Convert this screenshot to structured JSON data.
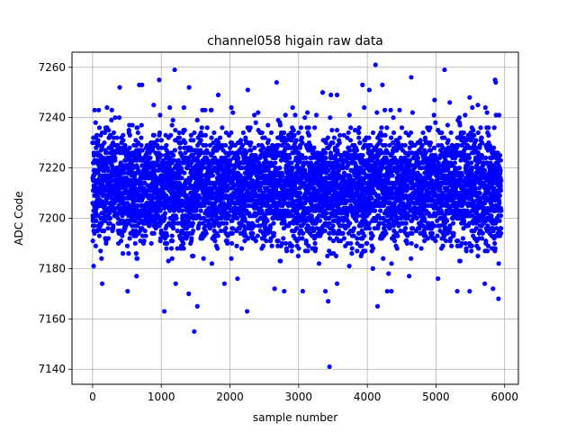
{
  "chart_data": {
    "type": "scatter",
    "title": "channel058 higain raw data",
    "xlabel": "sample number",
    "ylabel": "ADC Code",
    "xlim": [
      -300,
      6200
    ],
    "ylim": [
      7134,
      7266
    ],
    "xticks": [
      0,
      1000,
      2000,
      3000,
      4000,
      5000,
      6000
    ],
    "yticks": [
      7140,
      7160,
      7180,
      7200,
      7220,
      7240,
      7260
    ],
    "grid": true,
    "marker_color": "#0000ff",
    "marker": "circle",
    "n_samples": 5950,
    "typical_band": [
      7180,
      7245
    ],
    "center_value": 7212,
    "series": [
      {
        "points": [
          [
            1045,
            7163
          ],
          [
            1480,
            7155
          ],
          [
            1525,
            7165
          ],
          [
            2250,
            7163
          ],
          [
            3450,
            7141
          ],
          [
            3430,
            7167
          ],
          [
            3390,
            7171
          ],
          [
            1400,
            7170
          ],
          [
            5910,
            7168
          ],
          [
            140,
            7174
          ],
          [
            510,
            7171
          ],
          [
            5310,
            7171
          ],
          [
            5490,
            7171
          ],
          [
            5830,
            7172
          ],
          [
            3060,
            7171
          ],
          [
            4290,
            7171
          ],
          [
            4350,
            7171
          ],
          [
            2790,
            7171
          ],
          [
            2650,
            7172
          ],
          [
            1920,
            7174
          ],
          [
            1210,
            7174
          ],
          [
            3560,
            7174
          ],
          [
            5710,
            7174
          ],
          [
            2110,
            7176
          ],
          [
            640,
            7177
          ],
          [
            4150,
            7165
          ],
          [
            4310,
            7178
          ],
          [
            4610,
            7177
          ],
          [
            5030,
            7176
          ],
          [
            1195,
            7259
          ],
          [
            4120,
            7261
          ],
          [
            5125,
            7259
          ],
          [
            5860,
            7255
          ],
          [
            5870,
            7254
          ],
          [
            970,
            7255
          ],
          [
            2680,
            7254
          ],
          [
            1405,
            7252
          ],
          [
            395,
            7252
          ],
          [
            1830,
            7249
          ],
          [
            2260,
            7251
          ],
          [
            3350,
            7250
          ],
          [
            3470,
            7249
          ],
          [
            3560,
            7249
          ],
          [
            3930,
            7253
          ],
          [
            4030,
            7251
          ],
          [
            4220,
            7253
          ],
          [
            4640,
            7256
          ],
          [
            4980,
            7247
          ],
          [
            5490,
            7248
          ],
          [
            5200,
            7246
          ],
          [
            5610,
            7245
          ],
          [
            680,
            7253
          ],
          [
            720,
            7253
          ],
          [
            890,
            7245
          ],
          [
            1600,
            7243
          ],
          [
            2020,
            7244
          ],
          [
            2410,
            7242
          ],
          [
            2950,
            7241
          ],
          [
            3740,
            7241
          ],
          [
            4470,
            7243
          ],
          [
            5720,
            7244
          ],
          [
            5920,
            7241
          ],
          [
            30,
            7243
          ],
          [
            90,
            7243
          ],
          [
            210,
            7244
          ],
          [
            280,
            7243
          ],
          [
            1330,
            7244
          ],
          [
            1730,
            7243
          ],
          [
            4380,
            7240
          ],
          [
            5340,
            7240
          ],
          [
            3090,
            7240
          ],
          [
            330,
            7240
          ]
        ]
      }
    ]
  }
}
